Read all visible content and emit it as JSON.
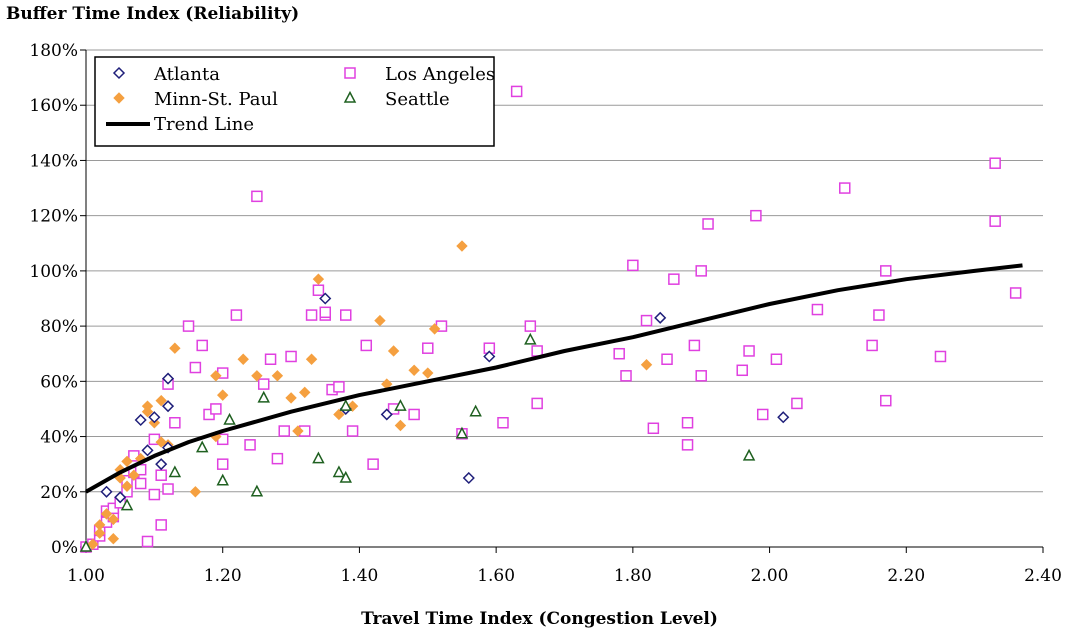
{
  "chart_data": {
    "type": "scatter",
    "ylabel": "Buffer Time Index (Reliability)",
    "xlabel": "Travel Time Index (Congestion Level)",
    "xlim": [
      1.0,
      2.4
    ],
    "ylim": [
      0,
      180
    ],
    "xticks": [
      1.0,
      1.2,
      1.4,
      1.6,
      1.8,
      2.0,
      2.2,
      2.4
    ],
    "xtick_labels": [
      "1.00",
      "1.20",
      "1.40",
      "1.60",
      "1.80",
      "2.00",
      "2.20",
      "2.40"
    ],
    "yticks": [
      0,
      20,
      40,
      60,
      80,
      100,
      120,
      140,
      160,
      180
    ],
    "ytick_labels": [
      "0%",
      "20%",
      "40%",
      "60%",
      "80%",
      "100%",
      "120%",
      "140%",
      "160%",
      "180%"
    ],
    "grid": "horizontal",
    "legend_position": "top-left",
    "series": [
      {
        "name": "Atlanta",
        "marker": "diamond-open",
        "color": "#1f1f7a",
        "points": [
          [
            1.03,
            20
          ],
          [
            1.05,
            18
          ],
          [
            1.08,
            46
          ],
          [
            1.09,
            35
          ],
          [
            1.1,
            47
          ],
          [
            1.12,
            61
          ],
          [
            1.12,
            36
          ],
          [
            1.12,
            51
          ],
          [
            1.35,
            90
          ],
          [
            1.38,
            50
          ],
          [
            1.44,
            48
          ],
          [
            1.56,
            25
          ],
          [
            1.59,
            69
          ],
          [
            1.84,
            83
          ],
          [
            2.02,
            47
          ],
          [
            1.11,
            30
          ]
        ]
      },
      {
        "name": "Minn-St. Paul",
        "marker": "diamond-filled",
        "color": "#f5a040",
        "points": [
          [
            1.01,
            1
          ],
          [
            1.02,
            5
          ],
          [
            1.02,
            8
          ],
          [
            1.03,
            12
          ],
          [
            1.04,
            3
          ],
          [
            1.04,
            10
          ],
          [
            1.05,
            25
          ],
          [
            1.05,
            28
          ],
          [
            1.06,
            31
          ],
          [
            1.07,
            26
          ],
          [
            1.08,
            32
          ],
          [
            1.09,
            51
          ],
          [
            1.09,
            49
          ],
          [
            1.1,
            45
          ],
          [
            1.11,
            53
          ],
          [
            1.11,
            38
          ],
          [
            1.12,
            37
          ],
          [
            1.13,
            72
          ],
          [
            1.16,
            20
          ],
          [
            1.19,
            62
          ],
          [
            1.19,
            40
          ],
          [
            1.2,
            55
          ],
          [
            1.23,
            68
          ],
          [
            1.25,
            62
          ],
          [
            1.28,
            62
          ],
          [
            1.3,
            54
          ],
          [
            1.31,
            42
          ],
          [
            1.32,
            56
          ],
          [
            1.33,
            68
          ],
          [
            1.34,
            97
          ],
          [
            1.37,
            48
          ],
          [
            1.39,
            51
          ],
          [
            1.43,
            82
          ],
          [
            1.44,
            59
          ],
          [
            1.45,
            71
          ],
          [
            1.46,
            44
          ],
          [
            1.48,
            64
          ],
          [
            1.5,
            63
          ],
          [
            1.51,
            79
          ],
          [
            1.55,
            109
          ],
          [
            1.82,
            66
          ],
          [
            1.06,
            22
          ]
        ]
      },
      {
        "name": "Los Angeles",
        "marker": "square-open",
        "color": "#e040e0",
        "points": [
          [
            1.0,
            0
          ],
          [
            1.01,
            1
          ],
          [
            1.02,
            4
          ],
          [
            1.02,
            6
          ],
          [
            1.03,
            9
          ],
          [
            1.03,
            13
          ],
          [
            1.04,
            11
          ],
          [
            1.04,
            14
          ],
          [
            1.05,
            16
          ],
          [
            1.06,
            20
          ],
          [
            1.06,
            24
          ],
          [
            1.07,
            27
          ],
          [
            1.07,
            33
          ],
          [
            1.08,
            23
          ],
          [
            1.08,
            28
          ],
          [
            1.09,
            2
          ],
          [
            1.1,
            19
          ],
          [
            1.1,
            39
          ],
          [
            1.11,
            8
          ],
          [
            1.11,
            26
          ],
          [
            1.12,
            21
          ],
          [
            1.12,
            59
          ],
          [
            1.13,
            45
          ],
          [
            1.15,
            80
          ],
          [
            1.16,
            65
          ],
          [
            1.17,
            73
          ],
          [
            1.18,
            48
          ],
          [
            1.19,
            50
          ],
          [
            1.2,
            39
          ],
          [
            1.2,
            63
          ],
          [
            1.22,
            84
          ],
          [
            1.24,
            37
          ],
          [
            1.25,
            127
          ],
          [
            1.26,
            59
          ],
          [
            1.27,
            68
          ],
          [
            1.28,
            32
          ],
          [
            1.3,
            69
          ],
          [
            1.32,
            42
          ],
          [
            1.33,
            84
          ],
          [
            1.34,
            93
          ],
          [
            1.35,
            84
          ],
          [
            1.35,
            85
          ],
          [
            1.36,
            57
          ],
          [
            1.37,
            58
          ],
          [
            1.38,
            84
          ],
          [
            1.39,
            42
          ],
          [
            1.41,
            73
          ],
          [
            1.42,
            30
          ],
          [
            1.45,
            50
          ],
          [
            1.48,
            48
          ],
          [
            1.5,
            72
          ],
          [
            1.52,
            80
          ],
          [
            1.55,
            41
          ],
          [
            1.59,
            72
          ],
          [
            1.61,
            45
          ],
          [
            1.63,
            165
          ],
          [
            1.65,
            80
          ],
          [
            1.66,
            52
          ],
          [
            1.66,
            71
          ],
          [
            1.78,
            70
          ],
          [
            1.79,
            62
          ],
          [
            1.8,
            102
          ],
          [
            1.82,
            82
          ],
          [
            1.83,
            43
          ],
          [
            1.85,
            68
          ],
          [
            1.86,
            97
          ],
          [
            1.88,
            37
          ],
          [
            1.89,
            73
          ],
          [
            1.9,
            62
          ],
          [
            1.9,
            100
          ],
          [
            1.91,
            117
          ],
          [
            1.96,
            64
          ],
          [
            1.97,
            71
          ],
          [
            1.98,
            120
          ],
          [
            1.99,
            48
          ],
          [
            2.01,
            68
          ],
          [
            2.04,
            52
          ],
          [
            2.07,
            86
          ],
          [
            2.11,
            130
          ],
          [
            2.15,
            73
          ],
          [
            2.16,
            84
          ],
          [
            2.17,
            53
          ],
          [
            2.17,
            100
          ],
          [
            2.25,
            69
          ],
          [
            2.33,
            139
          ],
          [
            2.33,
            118
          ],
          [
            2.36,
            92
          ],
          [
            1.88,
            45
          ],
          [
            1.29,
            42
          ],
          [
            1.2,
            30
          ]
        ]
      },
      {
        "name": "Seattle",
        "marker": "triangle-open",
        "color": "#1f6020",
        "points": [
          [
            1.0,
            0
          ],
          [
            1.06,
            15
          ],
          [
            1.13,
            27
          ],
          [
            1.17,
            36
          ],
          [
            1.2,
            24
          ],
          [
            1.21,
            46
          ],
          [
            1.25,
            20
          ],
          [
            1.26,
            54
          ],
          [
            1.34,
            32
          ],
          [
            1.37,
            27
          ],
          [
            1.38,
            51
          ],
          [
            1.38,
            25
          ],
          [
            1.46,
            51
          ],
          [
            1.55,
            41
          ],
          [
            1.57,
            49
          ],
          [
            1.65,
            75
          ],
          [
            1.97,
            33
          ]
        ]
      }
    ],
    "trend_line": {
      "name": "Trend Line",
      "color": "#000000",
      "x": [
        1.0,
        1.05,
        1.1,
        1.15,
        1.2,
        1.3,
        1.4,
        1.5,
        1.6,
        1.7,
        1.8,
        1.9,
        2.0,
        2.1,
        2.2,
        2.3,
        2.37
      ],
      "y": [
        20,
        27,
        33,
        38,
        42,
        49,
        55,
        60,
        65,
        71,
        76,
        82,
        88,
        93,
        97,
        100,
        102
      ]
    }
  }
}
